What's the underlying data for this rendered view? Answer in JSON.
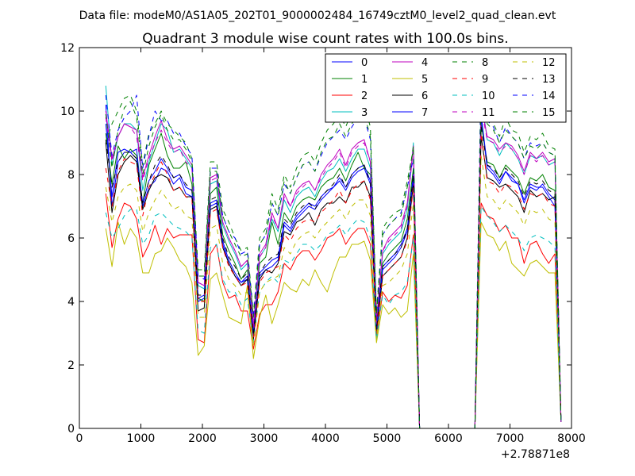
{
  "suptitle": "Data file: modeM0/AS1A05_202T01_9000002484_16749cztM0_level2_quad_clean.evt",
  "chart_data": {
    "type": "line",
    "title": "Quadrant 3 module wise count rates with 100.0s bins.",
    "xlabel": "",
    "ylabel": "",
    "xlim": [
      0,
      8000
    ],
    "ylim": [
      0,
      12
    ],
    "x_offset_label": "+2.78871e8",
    "xticks": [
      0,
      1000,
      2000,
      3000,
      4000,
      5000,
      6000,
      7000,
      8000
    ],
    "yticks": [
      0,
      2,
      4,
      6,
      8,
      10,
      12
    ],
    "grid": false,
    "legend_position": "top-right",
    "x": [
      430,
      530,
      630,
      730,
      830,
      930,
      1030,
      1130,
      1230,
      1330,
      1430,
      1530,
      1630,
      1730,
      1830,
      1930,
      2030,
      2130,
      2230,
      2330,
      2430,
      2530,
      2630,
      2730,
      2830,
      2930,
      3030,
      3130,
      3230,
      3330,
      3430,
      3530,
      3630,
      3730,
      3830,
      3930,
      4030,
      4130,
      4230,
      4330,
      4430,
      4530,
      4630,
      4730,
      4830,
      4930,
      5030,
      5130,
      5230,
      5330,
      5430,
      5530,
      6430,
      6530,
      6630,
      6730,
      6830,
      6930,
      7030,
      7130,
      7230,
      7330,
      7430,
      7530,
      7630,
      7730,
      7830
    ],
    "series": [
      {
        "name": "0",
        "color": "#0000ff",
        "dashed": false,
        "values": [
          10.2,
          7.0,
          8.4,
          8.7,
          8.7,
          8.8,
          7.0,
          7.6,
          7.8,
          8.2,
          8.1,
          7.7,
          7.9,
          7.4,
          7.3,
          4.0,
          4.1,
          7.0,
          7.1,
          5.8,
          5.2,
          4.8,
          4.6,
          4.7,
          2.9,
          4.8,
          5.0,
          5.1,
          5.3,
          6.4,
          6.2,
          6.6,
          6.8,
          7.0,
          6.9,
          7.2,
          7.4,
          7.6,
          7.8,
          7.5,
          7.9,
          8.1,
          8.2,
          7.7,
          3.0,
          5.0,
          5.2,
          5.4,
          5.7,
          6.2,
          7.9,
          0.0,
          0.0,
          9.8,
          8.2,
          8.0,
          7.7,
          8.1,
          7.8,
          7.7,
          7.1,
          7.6,
          7.5,
          7.7,
          7.4,
          7.2,
          0.2
        ]
      },
      {
        "name": "1",
        "color": "#008000",
        "dashed": false,
        "values": [
          9.3,
          7.7,
          8.9,
          8.5,
          8.8,
          8.6,
          7.1,
          8.3,
          8.8,
          9.3,
          8.6,
          8.2,
          8.2,
          8.4,
          7.7,
          4.1,
          4.0,
          7.4,
          7.6,
          6.1,
          5.6,
          5.2,
          4.7,
          5.0,
          3.2,
          5.2,
          5.4,
          6.5,
          5.8,
          6.8,
          6.5,
          7.0,
          7.2,
          7.3,
          7.2,
          7.6,
          7.8,
          7.9,
          8.2,
          7.8,
          8.3,
          8.7,
          8.2,
          8.0,
          3.2,
          5.2,
          5.5,
          5.7,
          5.9,
          6.6,
          8.2,
          0.0,
          0.0,
          9.6,
          8.4,
          8.3,
          7.9,
          8.3,
          8.1,
          7.9,
          7.4,
          7.9,
          7.8,
          8.0,
          7.6,
          7.5,
          0.2
        ]
      },
      {
        "name": "2",
        "color": "#ff0000",
        "dashed": false,
        "values": [
          7.4,
          5.7,
          6.6,
          7.1,
          7.0,
          6.6,
          5.4,
          5.8,
          6.4,
          5.8,
          6.3,
          6.0,
          6.1,
          6.1,
          6.1,
          2.8,
          2.7,
          5.5,
          5.8,
          4.6,
          4.1,
          4.2,
          3.7,
          3.7,
          2.5,
          3.6,
          3.9,
          3.9,
          4.3,
          5.2,
          5.0,
          5.4,
          5.6,
          5.6,
          5.3,
          5.6,
          6.0,
          6.1,
          6.3,
          5.8,
          6.1,
          6.3,
          6.3,
          5.8,
          2.8,
          4.3,
          4.0,
          4.2,
          4.1,
          4.5,
          6.1,
          0.0,
          0.0,
          7.1,
          6.7,
          6.6,
          6.2,
          6.4,
          6.0,
          6.0,
          5.2,
          5.8,
          5.9,
          5.5,
          5.2,
          5.5,
          0.2
        ]
      },
      {
        "name": "3",
        "color": "#00bfbf",
        "dashed": false,
        "values": [
          10.8,
          8.3,
          9.2,
          9.6,
          9.6,
          9.4,
          7.5,
          8.4,
          9.0,
          9.6,
          9.4,
          8.7,
          8.8,
          8.5,
          8.2,
          4.5,
          4.4,
          7.7,
          7.8,
          6.4,
          5.9,
          5.5,
          5.0,
          5.2,
          3.1,
          5.4,
          5.7,
          6.6,
          6.2,
          7.2,
          6.8,
          7.3,
          7.5,
          7.6,
          7.3,
          7.8,
          8.1,
          8.2,
          8.5,
          8.1,
          8.5,
          8.8,
          8.8,
          8.2,
          3.3,
          5.5,
          5.8,
          6.0,
          6.2,
          6.9,
          9.0,
          0.0,
          0.0,
          10.5,
          9.1,
          9.0,
          8.6,
          9.0,
          8.8,
          8.5,
          8.0,
          8.6,
          8.5,
          8.6,
          8.3,
          8.4,
          0.2
        ]
      },
      {
        "name": "4",
        "color": "#bf00bf",
        "dashed": false,
        "values": [
          10.0,
          8.5,
          9.2,
          9.6,
          9.5,
          9.4,
          7.9,
          8.6,
          9.2,
          9.7,
          9.1,
          8.8,
          8.9,
          8.6,
          8.3,
          4.6,
          4.5,
          7.9,
          8.0,
          6.5,
          6.0,
          5.6,
          5.1,
          5.3,
          3.2,
          5.5,
          5.8,
          6.8,
          6.3,
          7.4,
          7.0,
          7.5,
          7.7,
          7.8,
          7.5,
          8.0,
          8.3,
          8.5,
          8.8,
          8.3,
          8.8,
          9.0,
          9.1,
          8.4,
          3.4,
          5.6,
          6.0,
          6.2,
          6.4,
          7.1,
          8.9,
          0.0,
          0.0,
          10.2,
          9.2,
          9.1,
          8.8,
          9.0,
          8.9,
          8.6,
          8.1,
          8.7,
          8.5,
          8.7,
          8.4,
          8.5,
          0.2
        ]
      },
      {
        "name": "5",
        "color": "#bfbf00",
        "dashed": false,
        "values": [
          6.3,
          5.1,
          6.5,
          5.8,
          6.3,
          6.0,
          4.9,
          4.9,
          5.5,
          5.6,
          6.0,
          5.7,
          5.3,
          5.1,
          4.6,
          2.3,
          2.6,
          4.7,
          4.9,
          4.2,
          3.5,
          3.4,
          3.3,
          4.5,
          2.2,
          3.5,
          4.2,
          3.3,
          3.9,
          4.6,
          4.4,
          4.3,
          4.7,
          4.5,
          5.0,
          4.6,
          4.3,
          4.9,
          5.4,
          5.4,
          5.8,
          5.8,
          5.9,
          5.3,
          2.7,
          3.9,
          3.6,
          3.8,
          3.5,
          3.7,
          5.5,
          0.0,
          0.0,
          6.5,
          6.1,
          6.0,
          5.6,
          5.9,
          5.2,
          5.0,
          4.8,
          5.2,
          5.3,
          5.1,
          4.9,
          4.9,
          0.2
        ]
      },
      {
        "name": "6",
        "color": "#000000",
        "dashed": false,
        "values": [
          9.0,
          6.8,
          8.0,
          8.4,
          8.6,
          8.4,
          6.9,
          7.5,
          7.9,
          8.0,
          7.9,
          7.5,
          7.6,
          7.3,
          7.3,
          3.7,
          3.8,
          6.9,
          7.0,
          5.7,
          5.2,
          4.8,
          4.5,
          4.7,
          2.8,
          4.7,
          5.0,
          4.9,
          5.2,
          6.2,
          6.1,
          6.5,
          6.6,
          6.8,
          6.4,
          6.9,
          7.1,
          7.1,
          7.3,
          7.1,
          7.6,
          7.6,
          7.8,
          7.3,
          3.0,
          4.8,
          5.0,
          5.2,
          5.4,
          6.0,
          7.7,
          0.0,
          0.0,
          9.2,
          7.9,
          7.8,
          7.6,
          7.7,
          7.5,
          7.3,
          6.8,
          7.5,
          7.3,
          7.4,
          7.2,
          7.3,
          0.2
        ]
      },
      {
        "name": "7",
        "color": "#0000ff",
        "dashed": false,
        "values": [
          9.6,
          7.3,
          8.7,
          8.8,
          8.7,
          8.5,
          7.1,
          7.8,
          8.1,
          8.5,
          8.2,
          7.9,
          8.0,
          7.6,
          7.5,
          4.1,
          4.2,
          7.1,
          7.2,
          5.9,
          5.3,
          4.9,
          4.6,
          4.8,
          3.0,
          4.9,
          5.1,
          5.3,
          5.4,
          6.5,
          6.3,
          6.7,
          6.9,
          7.1,
          7.0,
          7.3,
          7.5,
          7.6,
          7.9,
          7.6,
          8.0,
          8.2,
          8.3,
          7.8,
          3.1,
          5.1,
          5.3,
          5.5,
          5.8,
          6.3,
          8.0,
          0.0,
          0.0,
          9.9,
          8.3,
          8.1,
          7.8,
          8.1,
          7.9,
          7.7,
          7.2,
          7.7,
          7.6,
          7.6,
          7.3,
          7.0,
          0.2
        ]
      },
      {
        "name": "8",
        "color": "#008000",
        "dashed": true,
        "values": [
          9.0,
          9.6,
          10.0,
          10.4,
          10.5,
          10.0,
          8.3,
          9.3,
          9.6,
          10.0,
          9.6,
          9.4,
          9.2,
          9.0,
          8.5,
          5.0,
          5.0,
          8.4,
          8.4,
          6.9,
          6.5,
          6.0,
          5.6,
          5.7,
          3.6,
          6.0,
          6.3,
          7.4,
          6.9,
          8.0,
          7.6,
          8.2,
          8.6,
          8.7,
          8.4,
          9.0,
          9.4,
          9.6,
          9.9,
          9.5,
          10.0,
          10.2,
          10.2,
          9.5,
          3.7,
          6.3,
          6.6,
          6.8,
          6.9,
          7.8,
          8.8,
          0.0,
          0.0,
          10.4,
          9.9,
          9.6,
          9.2,
          9.8,
          9.4,
          9.3,
          8.7,
          9.2,
          9.1,
          9.3,
          8.9,
          8.8,
          0.2
        ]
      },
      {
        "name": "9",
        "color": "#ff0000",
        "dashed": true,
        "values": [
          8.2,
          7.0,
          8.1,
          8.5,
          8.4,
          8.3,
          6.7,
          7.6,
          8.0,
          8.4,
          8.0,
          7.5,
          7.6,
          7.3,
          7.2,
          4.0,
          4.0,
          6.8,
          6.9,
          5.7,
          5.1,
          4.8,
          4.5,
          4.6,
          2.8,
          4.6,
          4.9,
          5.0,
          5.1,
          6.1,
          5.9,
          6.3,
          6.5,
          6.6,
          6.5,
          6.8,
          7.0,
          7.2,
          7.5,
          7.1,
          7.5,
          7.7,
          7.8,
          7.2,
          2.9,
          4.8,
          5.0,
          5.2,
          5.4,
          5.9,
          7.6,
          0.0,
          0.0,
          9.3,
          7.8,
          7.7,
          7.4,
          7.7,
          7.6,
          7.4,
          6.9,
          7.4,
          7.3,
          7.4,
          7.1,
          7.0,
          0.2
        ]
      },
      {
        "name": "10",
        "color": "#00bfbf",
        "dashed": true,
        "values": [
          6.8,
          6.0,
          6.3,
          6.7,
          6.9,
          6.9,
          5.8,
          6.1,
          6.7,
          6.8,
          6.6,
          6.4,
          6.3,
          6.2,
          6.0,
          3.1,
          3.0,
          5.7,
          5.8,
          4.7,
          4.3,
          4.3,
          3.9,
          4.1,
          2.7,
          4.3,
          4.6,
          4.8,
          4.6,
          5.3,
          5.2,
          5.5,
          5.8,
          5.8,
          5.6,
          5.8,
          6.1,
          6.2,
          6.4,
          6.1,
          6.4,
          6.6,
          6.5,
          6.0,
          2.8,
          4.2,
          3.9,
          4.2,
          4.3,
          4.6,
          6.0,
          0.0,
          0.0,
          7.0,
          6.7,
          6.5,
          6.2,
          6.4,
          6.2,
          6.0,
          5.6,
          6.0,
          6.1,
          6.0,
          5.9,
          5.7,
          0.2
        ]
      },
      {
        "name": "11",
        "color": "#bf00bf",
        "dashed": true,
        "values": [
          9.8,
          8.4,
          9.2,
          9.6,
          9.5,
          9.2,
          7.8,
          8.5,
          9.0,
          9.4,
          9.0,
          8.7,
          8.8,
          8.4,
          8.2,
          4.6,
          4.5,
          7.8,
          7.9,
          6.5,
          6.0,
          5.6,
          5.1,
          5.3,
          3.3,
          5.4,
          5.7,
          6.7,
          6.3,
          7.3,
          7.0,
          7.4,
          7.6,
          7.8,
          7.5,
          7.9,
          8.2,
          8.4,
          8.7,
          8.2,
          8.7,
          8.9,
          9.0,
          8.4,
          3.3,
          5.6,
          5.9,
          6.1,
          6.3,
          7.0,
          8.8,
          0.0,
          0.0,
          10.1,
          9.1,
          9.0,
          8.7,
          8.9,
          8.8,
          8.5,
          8.0,
          8.6,
          8.4,
          8.6,
          8.3,
          8.4,
          0.2
        ]
      },
      {
        "name": "12",
        "color": "#bfbf00",
        "dashed": true,
        "values": [
          7.6,
          6.5,
          7.3,
          7.6,
          7.7,
          7.5,
          6.2,
          6.8,
          7.2,
          7.5,
          7.2,
          6.9,
          7.0,
          6.7,
          6.6,
          3.5,
          3.5,
          6.3,
          6.4,
          5.2,
          4.7,
          4.5,
          4.2,
          4.3,
          2.6,
          4.3,
          4.6,
          4.7,
          4.8,
          5.7,
          5.5,
          5.9,
          6.1,
          6.2,
          6.0,
          6.3,
          6.5,
          6.7,
          6.9,
          6.6,
          7.0,
          7.2,
          7.2,
          6.7,
          2.8,
          4.5,
          4.6,
          4.8,
          5.0,
          5.5,
          7.1,
          0.0,
          0.0,
          8.6,
          7.3,
          7.2,
          6.9,
          7.2,
          7.0,
          6.8,
          6.4,
          6.9,
          6.8,
          6.9,
          6.6,
          6.5,
          0.2
        ]
      },
      {
        "name": "13",
        "color": "#000000",
        "dashed": true,
        "values": [
          9.1,
          7.6,
          8.4,
          8.7,
          8.7,
          8.5,
          7.1,
          7.8,
          8.3,
          8.6,
          8.3,
          7.9,
          8.0,
          7.7,
          7.5,
          4.2,
          4.2,
          7.2,
          7.3,
          6.0,
          5.4,
          5.1,
          4.7,
          4.9,
          3.0,
          4.9,
          5.2,
          5.4,
          5.5,
          6.6,
          6.4,
          6.8,
          7.0,
          7.1,
          6.9,
          7.3,
          7.5,
          7.7,
          8.0,
          7.6,
          8.0,
          8.2,
          8.3,
          7.7,
          3.1,
          5.1,
          5.3,
          5.5,
          5.7,
          6.3,
          8.0,
          0.0,
          0.0,
          9.5,
          8.3,
          8.2,
          7.9,
          8.2,
          8.0,
          7.8,
          7.3,
          7.8,
          7.7,
          7.8,
          7.5,
          7.4,
          0.2
        ]
      },
      {
        "name": "14",
        "color": "#0000ff",
        "dashed": true,
        "values": [
          10.5,
          8.6,
          9.4,
          9.8,
          10.0,
          10.5,
          8.2,
          9.2,
          10.0,
          9.7,
          9.7,
          9.3,
          9.3,
          8.9,
          8.6,
          4.8,
          4.7,
          8.2,
          8.2,
          6.7,
          6.2,
          6.0,
          5.5,
          5.6,
          3.5,
          5.8,
          6.1,
          7.1,
          6.7,
          7.7,
          7.4,
          7.9,
          8.3,
          8.4,
          8.1,
          8.6,
          9.0,
          9.2,
          9.4,
          9.1,
          9.5,
          9.8,
          9.8,
          9.1,
          3.6,
          6.1,
          6.4,
          6.6,
          6.8,
          7.6,
          8.5,
          0.0,
          0.0,
          11.3,
          9.7,
          9.5,
          9.0,
          9.5,
          9.2,
          9.0,
          8.5,
          9.0,
          8.9,
          9.0,
          8.7,
          8.6,
          0.2
        ]
      },
      {
        "name": "15",
        "color": "#008000",
        "dashed": true,
        "values": [
          9.9,
          8.2,
          9.4,
          10.1,
          10.3,
          9.8,
          8.0,
          8.9,
          9.5,
          9.9,
          9.4,
          9.1,
          9.1,
          8.8,
          8.4,
          4.8,
          4.8,
          8.1,
          8.1,
          6.7,
          6.2,
          5.8,
          5.4,
          5.5,
          3.5,
          5.8,
          6.1,
          7.1,
          6.7,
          7.8,
          7.4,
          7.9,
          8.3,
          8.4,
          8.1,
          8.7,
          9.1,
          9.2,
          9.6,
          9.2,
          9.6,
          9.9,
          9.9,
          9.2,
          3.6,
          6.1,
          6.4,
          6.6,
          6.7,
          7.6,
          8.9,
          0.0,
          0.0,
          10.8,
          9.6,
          9.4,
          9.0,
          9.4,
          9.2,
          9.0,
          8.5,
          8.9,
          8.8,
          9.0,
          8.7,
          8.6,
          0.2
        ]
      }
    ]
  }
}
